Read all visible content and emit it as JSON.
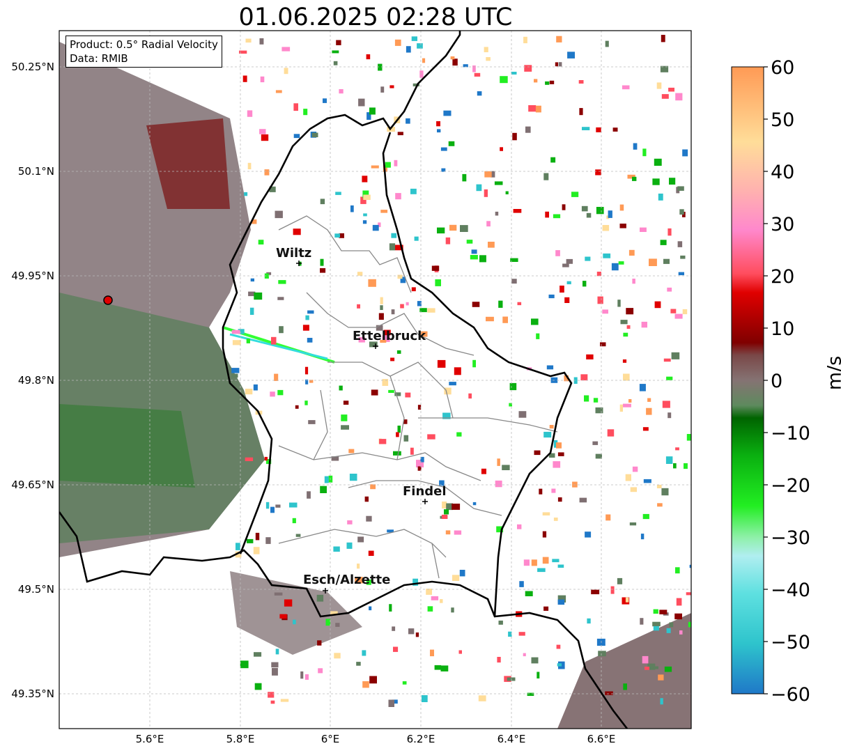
{
  "title": "01.06.2025 02:28 UTC",
  "info_box": {
    "product": "Product: 0.5° Radial Velocity",
    "data": "Data: RMIB"
  },
  "axes": {
    "lat_ticks": [
      "50.25°N",
      "50.1°N",
      "49.95°N",
      "49.8°N",
      "49.65°N",
      "49.5°N",
      "49.35°N"
    ],
    "lon_ticks": [
      "5.6°E",
      "5.8°E",
      "6°E",
      "6.2°E",
      "6.4°E",
      "6.6°E"
    ],
    "grid": true
  },
  "cities": [
    {
      "name": "Wiltz"
    },
    {
      "name": "Ettelbruck"
    },
    {
      "name": "Findel"
    },
    {
      "name": "Esch/Alzette"
    }
  ],
  "colorbar": {
    "unit": "m/s",
    "tick_labels": [
      "60",
      "50",
      "40",
      "30",
      "20",
      "10",
      "0",
      "−10",
      "−20",
      "−30",
      "−40",
      "−50",
      "−60"
    ],
    "range": [
      -60,
      60
    ]
  },
  "colors": {
    "border": "#000000",
    "canton": "#888888",
    "radar_marker": "#e00000"
  }
}
